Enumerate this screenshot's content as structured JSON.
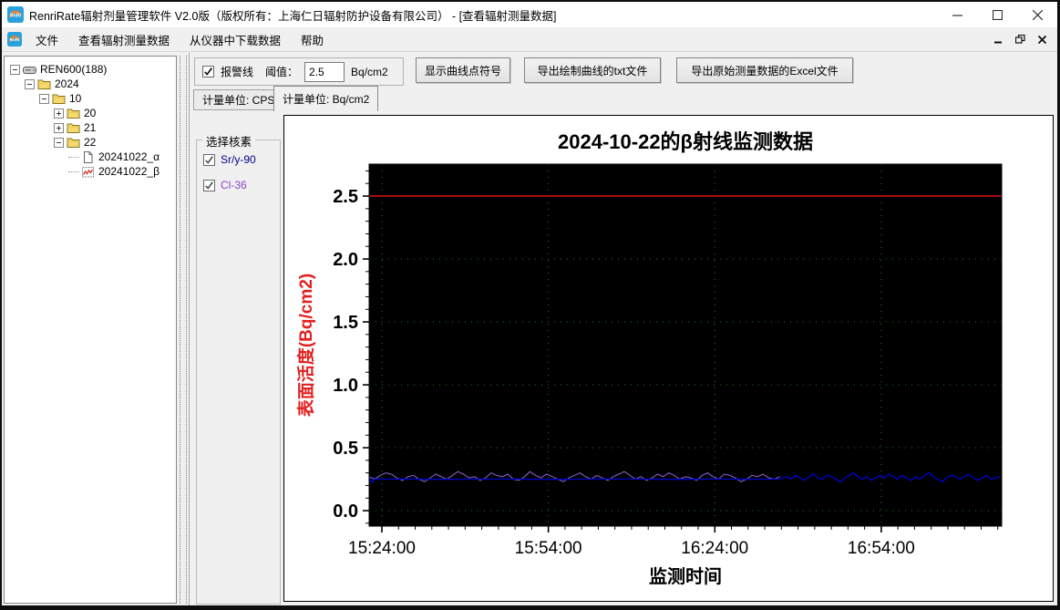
{
  "window": {
    "title": "RenriRate辐射剂量管理软件 V2.0版（版权所有：上海仁日辐射防护设备有限公司） - [查看辐射测量数据]"
  },
  "menu": {
    "items": [
      "文件",
      "查看辐射测量数据",
      "从仪器中下载数据",
      "帮助"
    ]
  },
  "tree": {
    "items": [
      {
        "label": "REN600(188)",
        "level": 0,
        "expander": "minus",
        "icon": "device"
      },
      {
        "label": "2024",
        "level": 1,
        "expander": "minus",
        "icon": "folder"
      },
      {
        "label": "10",
        "level": 2,
        "expander": "minus",
        "icon": "folder"
      },
      {
        "label": "20",
        "level": 3,
        "expander": "plus",
        "icon": "folder"
      },
      {
        "label": "21",
        "level": 3,
        "expander": "plus",
        "icon": "folder"
      },
      {
        "label": "22",
        "level": 3,
        "expander": "minus",
        "icon": "folder"
      },
      {
        "label": "20241022_α",
        "level": 4,
        "expander": "none",
        "icon": "document"
      },
      {
        "label": "20241022_β",
        "level": 4,
        "expander": "none",
        "icon": "chart-file"
      }
    ]
  },
  "controls": {
    "alarm_checkbox_label": "报警线",
    "alarm_checked": true,
    "threshold_label": "阈值：",
    "threshold_value": "2.5",
    "threshold_unit": "Bq/cm2",
    "show_points_button": "显示曲线点符号",
    "export_txt_button": "导出绘制曲线的txt文件",
    "export_excel_button": "导出原始测量数据的Excel文件"
  },
  "tabs": [
    {
      "label": "计量单位: CPS",
      "active": false
    },
    {
      "label": "计量单位: Bq/cm2",
      "active": true
    }
  ],
  "nuclide_panel": {
    "title": "选择核素",
    "items": [
      {
        "label": "Sr/y-90",
        "checked": true,
        "color": "#00008b"
      },
      {
        "label": "Cl-36",
        "checked": true,
        "color": "#8b46c8"
      }
    ]
  },
  "chart_data": {
    "type": "line",
    "title": "2024-10-22的β射线监测数据",
    "xlabel": "监测时间",
    "ylabel": "表面活度(Bq/cm2)",
    "plot_background": "#000000",
    "grid_color": "#1e7a1e",
    "ylabel_color": "#e02020",
    "axis_ranges": {
      "x_min_minutes": 0,
      "x_max_minutes": 114,
      "y_min": -0.123,
      "y_max": 2.754
    },
    "x_ticks": [
      {
        "label": "15:24:00",
        "minute": 2.3
      },
      {
        "label": "15:54:00",
        "minute": 32.3
      },
      {
        "label": "16:24:00",
        "minute": 62.3
      },
      {
        "label": "16:54:00",
        "minute": 92.3
      }
    ],
    "y_ticks": [
      {
        "label": "0.0",
        "value": 0.0
      },
      {
        "label": "0.5",
        "value": 0.5
      },
      {
        "label": "1.0",
        "value": 1.0
      },
      {
        "label": "1.5",
        "value": 1.5
      },
      {
        "label": "2.0",
        "value": 2.0
      },
      {
        "label": "2.5",
        "value": 2.5
      }
    ],
    "minor_tick_steps": {
      "x_minutes": 3,
      "y": 0.1
    },
    "alarm_line": {
      "value": 2.5,
      "color": "#dd1111"
    },
    "series": [
      {
        "name": "Cl-36",
        "color": "#8f63d2",
        "unit": "Bq/cm2",
        "segments": [
          {
            "t0": 0,
            "dt": 1,
            "values": [
              0.27,
              0.25,
              0.28,
              0.3,
              0.29,
              0.26,
              0.24,
              0.27,
              0.28,
              0.25,
              0.23,
              0.26,
              0.29,
              0.27,
              0.25,
              0.28,
              0.31,
              0.29,
              0.26,
              0.27,
              0.24,
              0.26,
              0.3,
              0.28,
              0.27,
              0.29,
              0.25,
              0.24,
              0.27,
              0.31,
              0.28,
              0.26,
              0.29,
              0.27,
              0.25,
              0.23,
              0.26,
              0.28,
              0.3,
              0.27,
              0.25,
              0.28,
              0.26,
              0.24,
              0.27,
              0.29,
              0.31,
              0.28,
              0.25,
              0.27,
              0.24,
              0.26,
              0.29,
              0.27,
              0.3,
              0.28,
              0.25,
              0.27,
              0.26,
              0.24,
              0.28,
              0.3,
              0.27,
              0.25,
              0.29,
              0.28,
              0.26,
              0.23,
              0.25,
              0.28,
              0.27,
              0.29,
              0.26,
              0.25,
              0.27
            ]
          }
        ]
      },
      {
        "name": "Sr/y-90",
        "color": "#0000d2",
        "unit": "Bq/cm2",
        "segments": [
          {
            "t0": 0,
            "dt": 0.5,
            "values": [
              0.27,
              0.225,
              0.248,
              0.252
            ]
          },
          {
            "t0": 2,
            "dt": 6,
            "values": [
              0.25,
              0.251,
              0.249,
              0.25,
              0.251,
              0.249,
              0.25,
              0.251,
              0.25,
              0.249,
              0.251,
              0.25,
              0.25
            ]
          },
          {
            "t0": 74.5,
            "dt": 0.8,
            "values": [
              0.26,
              0.27,
              0.25,
              0.28,
              0.26,
              0.24,
              0.27,
              0.29,
              0.26,
              0.25,
              0.28,
              0.27,
              0.25,
              0.23,
              0.26,
              0.28,
              0.3,
              0.27,
              0.25,
              0.27,
              0.24,
              0.26,
              0.28,
              0.26,
              0.29,
              0.27,
              0.25,
              0.28,
              0.26,
              0.24,
              0.27,
              0.25,
              0.28,
              0.3,
              0.27,
              0.25,
              0.23,
              0.26,
              0.28,
              0.27,
              0.25,
              0.27,
              0.29,
              0.26,
              0.24,
              0.26,
              0.28,
              0.25,
              0.26,
              0.27
            ]
          }
        ]
      }
    ]
  }
}
